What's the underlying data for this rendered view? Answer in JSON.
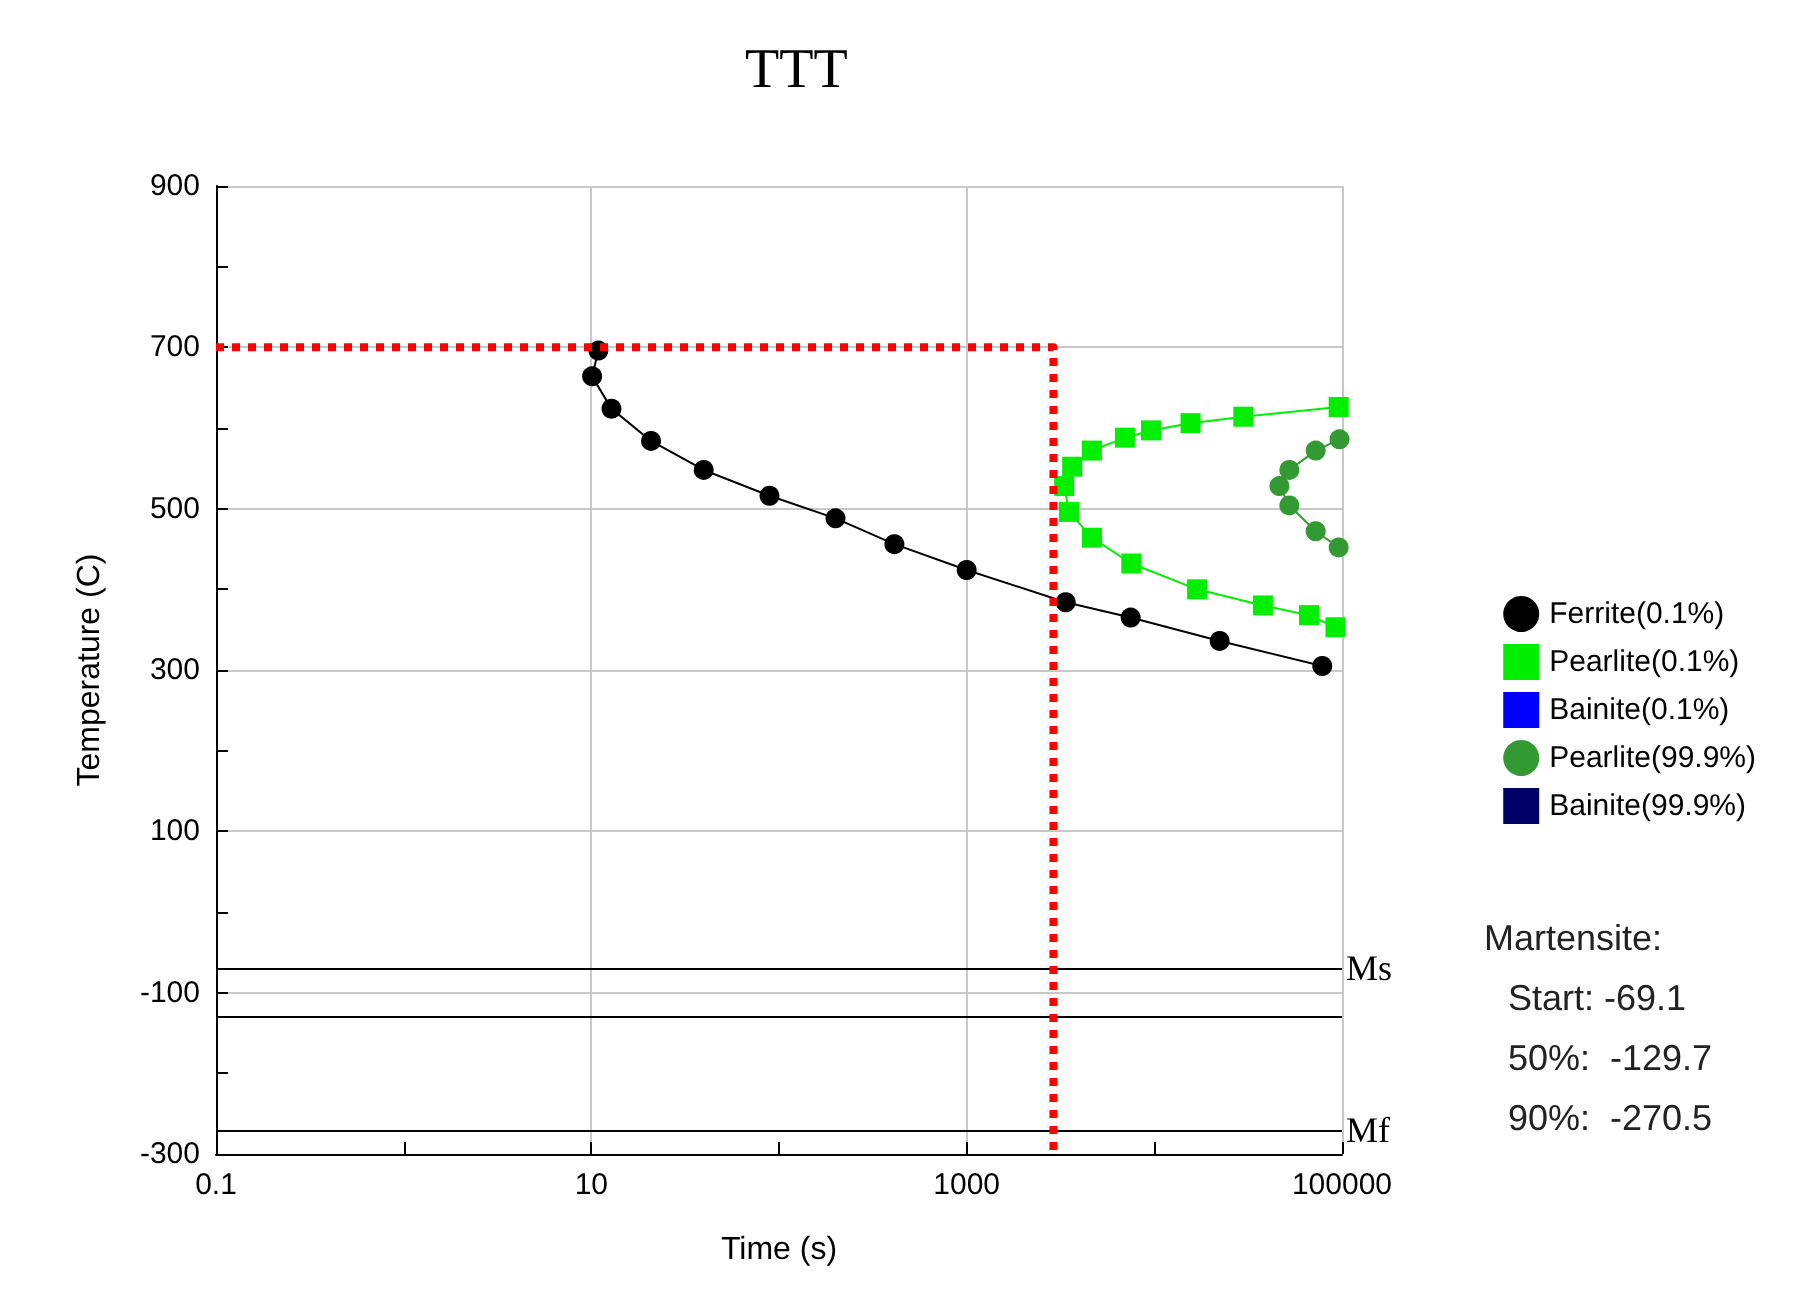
{
  "chart_data": {
    "type": "line",
    "title": "TTT",
    "xlabel": "Time (s)",
    "ylabel": "Temperature (C)",
    "log": "x",
    "grid": true,
    "legend": "right",
    "xlim": [
      0.1,
      100000
    ],
    "xticks": [
      0.1,
      {
        "value": 1,
        "label": null
      },
      10,
      {
        "value": 100,
        "label": null
      },
      1000,
      {
        "value": 10000,
        "label": null
      },
      100000
    ],
    "ylim": [
      -300,
      900
    ],
    "yticks": [
      -300,
      {
        "value": -200,
        "label": null
      },
      -100,
      {
        "value": 0,
        "label": null
      },
      100,
      {
        "value": 200,
        "label": null
      },
      300,
      {
        "value": 400,
        "label": null
      },
      500,
      {
        "value": 600,
        "label": null
      },
      700,
      {
        "value": 800,
        "label": null
      },
      900
    ],
    "series": [
      {
        "name": "Ferrite(0.1%)",
        "color": "#000000",
        "marker": "circle",
        "x": [
          10.9,
          10.1,
          12.8,
          20.8,
          39.7,
          89,
          200,
          412,
          1000,
          3370,
          7480,
          22300,
          78500
        ],
        "values": [
          696,
          664,
          624,
          584,
          548,
          516,
          488,
          456,
          424,
          384,
          365,
          336,
          305
        ]
      },
      {
        "name": "Pearlite(0.1%)",
        "color": "#00ee00",
        "marker": "square",
        "x": [
          96000,
          29800,
          15600,
          9600,
          6970,
          4650,
          3650,
          3310,
          3510,
          4650,
          7540,
          16900,
          37900,
          66700,
          92300
        ],
        "values": [
          626,
          614,
          606,
          597,
          588,
          572,
          552,
          528,
          496,
          464,
          432,
          400,
          380,
          368,
          353
        ]
      },
      {
        "name": "Bainite(0.1%)",
        "color": "#0000ff",
        "marker": "square"
      },
      {
        "name": "Pearlite(99.9%)",
        "color": "#339933",
        "marker": "circle",
        "x": [
          97000,
          72400,
          52400,
          46400,
          52400,
          72400,
          96000
        ],
        "values": [
          586,
          572,
          548,
          528,
          504,
          472,
          452
        ]
      },
      {
        "name": "Bainite(99.9%)",
        "color": "#000066",
        "marker": "square"
      },
      {
        "color": "#ff0000",
        "marker": "none",
        "line_style": "dotted",
        "x": [
          0.1,
          2900,
          2900
        ],
        "values": [
          700,
          700,
          -300
        ]
      }
    ],
    "ref_lines": [
      {
        "axis": "y",
        "value": -69.1,
        "label": "Ms",
        "color": "#000000"
      },
      {
        "axis": "y",
        "value": -129.7,
        "label": null,
        "color": "#000000"
      },
      {
        "axis": "y",
        "value": -270.5,
        "label": "Mf",
        "color": "#000000"
      }
    ],
    "annotations": [
      "Martensite:",
      "Start: -69.1",
      "50%:  -129.7",
      "90%:  -270.5"
    ]
  }
}
